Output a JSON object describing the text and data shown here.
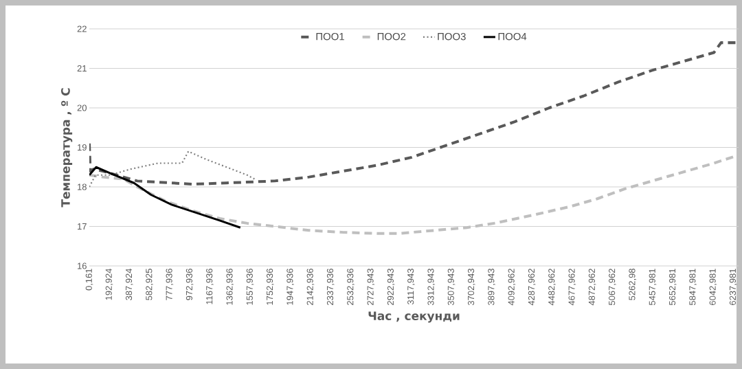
{
  "chart_data": {
    "type": "line",
    "xlabel": "Час , секунди",
    "ylabel": "Температура , º С",
    "xlim": [
      0,
      6290
    ],
    "ylim": [
      16,
      22
    ],
    "yticks": [
      16,
      17,
      18,
      19,
      20,
      21,
      22
    ],
    "xticks": [
      {
        "value": 0.161,
        "label": "0,161"
      },
      {
        "value": 192.924,
        "label": "192,924"
      },
      {
        "value": 387.924,
        "label": "387,924"
      },
      {
        "value": 582.925,
        "label": "582,925"
      },
      {
        "value": 777.936,
        "label": "777,936"
      },
      {
        "value": 972.936,
        "label": "972,936"
      },
      {
        "value": 1167.936,
        "label": "1167,936"
      },
      {
        "value": 1362.936,
        "label": "1362,936"
      },
      {
        "value": 1557.936,
        "label": "1557,936"
      },
      {
        "value": 1752.936,
        "label": "1752,936"
      },
      {
        "value": 1947.936,
        "label": "1947,936"
      },
      {
        "value": 2142.936,
        "label": "2142,936"
      },
      {
        "value": 2337.936,
        "label": "2337,936"
      },
      {
        "value": 2532.936,
        "label": "2532,936"
      },
      {
        "value": 2727.943,
        "label": "2727,943"
      },
      {
        "value": 2922.943,
        "label": "2922,943"
      },
      {
        "value": 3117.943,
        "label": "3117,943"
      },
      {
        "value": 3312.943,
        "label": "3312,943"
      },
      {
        "value": 3507.943,
        "label": "3507,943"
      },
      {
        "value": 3702.943,
        "label": "3702,943"
      },
      {
        "value": 3897.943,
        "label": "3897,943"
      },
      {
        "value": 4092.962,
        "label": "4092,962"
      },
      {
        "value": 4287.962,
        "label": "4287,962"
      },
      {
        "value": 4482.962,
        "label": "4482,962"
      },
      {
        "value": 4677.962,
        "label": "4677,962"
      },
      {
        "value": 4872.962,
        "label": "4872,962"
      },
      {
        "value": 5067.962,
        "label": "5067,962"
      },
      {
        "value": 5262.98,
        "label": "5262,98"
      },
      {
        "value": 5457.981,
        "label": "5457,981"
      },
      {
        "value": 5652.981,
        "label": "5652,981"
      },
      {
        "value": 5847.981,
        "label": "5847,981"
      },
      {
        "value": 6042.981,
        "label": "6042,981"
      },
      {
        "value": 6237.981,
        "label": "6237,981"
      }
    ],
    "grid": "y",
    "legend": "top",
    "series": [
      {
        "name": "ПОО1",
        "color": "#595959",
        "line_style": "dashed",
        "x": [
          0,
          10,
          40,
          130,
          330,
          465,
          665,
          997,
          1330,
          1795,
          2128,
          2460,
          2792,
          3125,
          3457,
          3790,
          4122,
          4455,
          4787,
          5120,
          5452,
          5785,
          6051,
          6120,
          6285
        ],
        "values": [
          19.1,
          18.4,
          18.45,
          18.4,
          18.25,
          18.15,
          18.12,
          18.07,
          18.1,
          18.15,
          18.25,
          18.4,
          18.55,
          18.75,
          19.05,
          19.35,
          19.65,
          20.0,
          20.3,
          20.65,
          20.95,
          21.2,
          21.4,
          21.65,
          21.65
        ]
      },
      {
        "name": "ПОО2",
        "color": "#bfbfbf",
        "line_style": "dashed",
        "x": [
          0,
          130,
          330,
          465,
          731,
          997,
          1263,
          1529,
          1795,
          2128,
          2460,
          2792,
          2992,
          3258,
          3657,
          3923,
          4322,
          4655,
          4921,
          5187,
          5519,
          5785,
          6051,
          6285
        ],
        "values": [
          18.3,
          18.25,
          18.2,
          18.0,
          17.65,
          17.4,
          17.2,
          17.08,
          17.0,
          16.9,
          16.85,
          16.82,
          16.82,
          16.88,
          16.97,
          17.08,
          17.3,
          17.5,
          17.7,
          17.95,
          18.2,
          18.4,
          18.6,
          18.8
        ]
      },
      {
        "name": "ПОО3",
        "color": "#7f7f7f",
        "line_style": "dotted",
        "x": [
          0,
          60,
          200,
          400,
          665,
          898,
          960,
          1130,
          1330,
          1529,
          1600
        ],
        "values": [
          18.0,
          18.3,
          18.3,
          18.45,
          18.6,
          18.6,
          18.9,
          18.7,
          18.5,
          18.3,
          18.2
        ]
      },
      {
        "name": "ПОО4",
        "color": "#000000",
        "line_style": "solid",
        "x": [
          0,
          66,
          199,
          432,
          598,
          798,
          1031,
          1263,
          1463
        ],
        "values": [
          18.3,
          18.5,
          18.35,
          18.1,
          17.8,
          17.55,
          17.35,
          17.15,
          16.97
        ]
      }
    ]
  }
}
